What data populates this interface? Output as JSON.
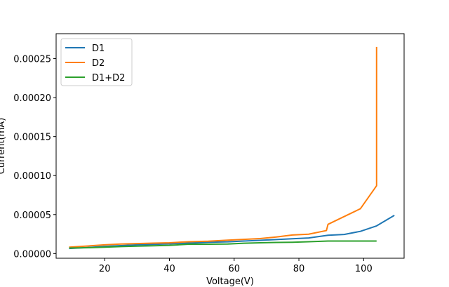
{
  "chart_data": {
    "type": "line",
    "title": "",
    "xlabel": "Voltage(V)",
    "ylabel": "Current(mA)",
    "xlim": [
      5,
      112.5
    ],
    "ylim": [
      -6e-06,
      0.000282
    ],
    "xticks": [
      20,
      40,
      60,
      80,
      100
    ],
    "xtick_labels": [
      "20",
      "40",
      "60",
      "80",
      "100"
    ],
    "yticks": [
      0,
      5e-05,
      0.0001,
      0.00015,
      0.0002,
      0.00025
    ],
    "ytick_labels": [
      "0.00000",
      "0.00005",
      "0.00010",
      "0.00015",
      "0.00020",
      "0.00025"
    ],
    "grid": false,
    "legend_position": "top-left",
    "series": [
      {
        "name": "D1",
        "color": "#1f77b4",
        "x": [
          9,
          15,
          20,
          25,
          30,
          35,
          40,
          46,
          52,
          58,
          63,
          68,
          73,
          78,
          83,
          89,
          94,
          99,
          104,
          109.5
        ],
        "y": [
          6.5e-06,
          7.8e-06,
          9.2e-06,
          1.02e-05,
          1.12e-05,
          1.18e-05,
          1.25e-05,
          1.35e-05,
          1.45e-05,
          1.5e-05,
          1.6e-05,
          1.7e-05,
          1.8e-05,
          1.9e-05,
          2e-05,
          2.35e-05,
          2.45e-05,
          2.85e-05,
          3.55e-05,
          4.9e-05
        ]
      },
      {
        "name": "D2",
        "color": "#ff7f0e",
        "x": [
          9,
          15,
          20,
          25,
          30,
          35,
          40,
          46,
          52,
          58,
          63,
          68,
          73,
          78,
          83,
          88.5,
          89,
          94,
          99,
          104,
          104,
          104
        ],
        "y": [
          8.2e-06,
          9.8e-06,
          1.12e-05,
          1.22e-05,
          1.28e-05,
          1.33e-05,
          1.38e-05,
          1.52e-05,
          1.58e-05,
          1.72e-05,
          1.82e-05,
          1.92e-05,
          2.12e-05,
          2.38e-05,
          2.48e-05,
          2.95e-05,
          3.75e-05,
          4.75e-05,
          5.75e-05,
          8.7e-05,
          0.00018,
          0.000265
        ]
      },
      {
        "name": "D1+D2",
        "color": "#2ca02c",
        "x": [
          9,
          15,
          20,
          25,
          30,
          35,
          40,
          46,
          52,
          58,
          63,
          68,
          73,
          78,
          83,
          89,
          94,
          99,
          104
        ],
        "y": [
          7e-06,
          7.5e-06,
          8.2e-06,
          9e-06,
          9.5e-06,
          1e-05,
          1.05e-05,
          1.2e-05,
          1.2e-05,
          1.22e-05,
          1.32e-05,
          1.38e-05,
          1.42e-05,
          1.45e-05,
          1.52e-05,
          1.6e-05,
          1.6e-05,
          1.6e-05,
          1.6e-05
        ]
      }
    ]
  }
}
